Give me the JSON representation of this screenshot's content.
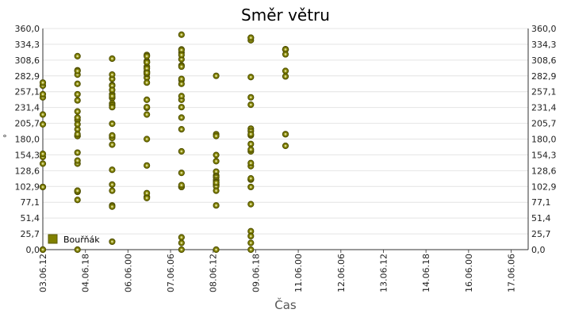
{
  "chart_data": {
    "type": "scatter",
    "title": "Směr větru",
    "xlabel": "Čas",
    "ylabel": "°",
    "ylim": [
      0,
      360
    ],
    "yticks": [
      "0,0",
      "25,7",
      "51,4",
      "77,1",
      "102,9",
      "128,6",
      "154,3",
      "180,0",
      "205,7",
      "231,4",
      "257,1",
      "282,9",
      "308,6",
      "334,3",
      "360,0"
    ],
    "xlim": [
      "03.06.12 00:00",
      "17.06.18 00:00"
    ],
    "xticks": [
      "03.06.12",
      "04.06.18",
      "06.06.00",
      "07.06.06",
      "08.06.12",
      "09.06.18",
      "11.06.00",
      "12.06.06",
      "13.06.12",
      "14.06.18",
      "16.06.00",
      "17.06.06"
    ],
    "grid": true,
    "legend": "bottom-left",
    "marker_color": "#808000",
    "series": [
      {
        "name": "Bouřňák",
        "points": [
          [
            "03.06.12 00:00",
            267
          ],
          [
            "03.06.12 00:00",
            102
          ],
          [
            "03.06.13 00:00",
            248
          ],
          [
            "03.06.14 00:00",
            151
          ],
          [
            "03.06.15 00:00",
            220
          ],
          [
            "03.06.16 00:00",
            156
          ],
          [
            "03.06.17 00:00",
            272
          ],
          [
            "03.06.18 00:00",
            102
          ],
          [
            "03.06.19 00:00",
            0
          ],
          [
            "03.06.20 00:00",
            140
          ],
          [
            "03.06.21 00:00",
            0
          ],
          [
            "03.06.22 00:00",
            253
          ],
          [
            "03.06.23 00:00",
            204
          ],
          [
            "04.06.00 00:00",
            81
          ],
          [
            "04.06.01 00:00",
            95
          ],
          [
            "04.06.02 00:00",
            225
          ],
          [
            "04.06.03 00:00",
            292
          ],
          [
            "04.06.04 00:00",
            315
          ],
          [
            "04.06.05 00:00",
            285
          ],
          [
            "04.06.06 00:00",
            270
          ],
          [
            "04.06.07 00:00",
            291
          ],
          [
            "04.06.08 00:00",
            243
          ],
          [
            "04.06.09 00:00",
            140
          ],
          [
            "04.06.10 00:00",
            196
          ],
          [
            "04.06.11 00:00",
            211
          ],
          [
            "04.06.12 00:00",
            185
          ],
          [
            "04.06.13 00:00",
            94
          ],
          [
            "04.06.14 00:00",
            96
          ],
          [
            "04.06.15 00:00",
            145
          ],
          [
            "04.06.16 00:00",
            215
          ],
          [
            "04.06.17 00:00",
            204
          ],
          [
            "04.06.18 00:00",
            185
          ],
          [
            "04.06.19 00:00",
            0
          ],
          [
            "04.06.20 00:00",
            96
          ],
          [
            "04.06.21 00:00",
            253
          ],
          [
            "04.06.22 00:00",
            188
          ],
          [
            "04.06.23 00:00",
            158
          ],
          [
            "05.06.00 00:00",
            278
          ],
          [
            "05.06.01 00:00",
            311
          ],
          [
            "05.06.02 00:00",
            268
          ],
          [
            "05.06.03 00:00",
            267
          ],
          [
            "05.06.04 00:00",
            205
          ],
          [
            "05.06.05 00:00",
            253
          ],
          [
            "05.06.06 00:00",
            13
          ],
          [
            "05.06.07 00:00",
            171
          ],
          [
            "05.06.08 00:00",
            130
          ],
          [
            "05.06.09 00:00",
            185
          ],
          [
            "05.06.10 00:00",
            247
          ],
          [
            "05.06.11 00:00",
            96
          ],
          [
            "05.06.12 00:00",
            106
          ],
          [
            "05.06.13 00:00",
            182
          ],
          [
            "05.06.14 00:00",
            186
          ],
          [
            "05.06.15 00:00",
            285
          ],
          [
            "05.06.16 00:00",
            247
          ],
          [
            "05.06.17 00:00",
            238
          ],
          [
            "05.06.18 00:00",
            235
          ],
          [
            "05.06.19 00:00",
            72
          ],
          [
            "05.06.20 00:00",
            70
          ],
          [
            "05.06.21 00:00",
            232
          ],
          [
            "05.06.22 00:00",
            250
          ],
          [
            "05.06.23 00:00",
            260
          ],
          [
            "06.06.00 00:00",
            290
          ],
          [
            "06.06.01 00:00",
            231
          ],
          [
            "06.06.02 00:00",
            288
          ],
          [
            "06.06.03 00:00",
            317
          ],
          [
            "06.06.04 00:00",
            307
          ],
          [
            "06.06.05 00:00",
            298
          ],
          [
            "06.06.06 00:00",
            315
          ],
          [
            "06.06.07 00:00",
            305
          ],
          [
            "06.06.08 00:00",
            305
          ],
          [
            "06.06.09 00:00",
            280
          ],
          [
            "06.06.10 00:00",
            290
          ],
          [
            "06.06.11 00:00",
            295
          ],
          [
            "06.06.12 00:00",
            286
          ],
          [
            "06.06.13 00:00",
            272
          ],
          [
            "06.06.14 00:00",
            305
          ],
          [
            "06.06.15 00:00",
            288
          ],
          [
            "06.06.16 00:00",
            232
          ],
          [
            "06.06.17 00:00",
            220
          ],
          [
            "06.06.18 00:00",
            137
          ],
          [
            "06.06.19 00:00",
            244
          ],
          [
            "06.06.20 00:00",
            180
          ],
          [
            "06.06.21 00:00",
            86
          ],
          [
            "06.06.22 00:00",
            92
          ],
          [
            "06.06.23 00:00",
            84
          ],
          [
            "07.06.00 00:00",
            232
          ],
          [
            "07.06.01 00:00",
            244
          ],
          [
            "07.06.02 00:00",
            250
          ],
          [
            "07.06.03 00:00",
            300
          ],
          [
            "07.06.04 00:00",
            326
          ],
          [
            "07.06.05 00:00",
            310
          ],
          [
            "07.06.06 00:00",
            276
          ],
          [
            "07.06.07 00:00",
            298
          ],
          [
            "07.06.08 00:00",
            321
          ],
          [
            "07.06.09 00:00",
            325
          ],
          [
            "07.06.10 00:00",
            160
          ],
          [
            "07.06.11 00:00",
            317
          ],
          [
            "07.06.12 00:00",
            270
          ],
          [
            "07.06.13 00:00",
            196
          ],
          [
            "07.06.14 00:00",
            215
          ],
          [
            "07.06.15 00:00",
            20
          ],
          [
            "07.06.16 00:00",
            11
          ],
          [
            "07.06.17 00:00",
            350
          ],
          [
            "07.06.18 00:00",
            278
          ],
          [
            "07.06.19 00:00",
            0
          ],
          [
            "07.06.20 00:00",
            125
          ],
          [
            "07.06.21 00:00",
            102
          ],
          [
            "07.06.22 00:00",
            102
          ],
          [
            "07.06.23 00:00",
            105
          ],
          [
            "08.06.00 00:00",
            188
          ],
          [
            "08.06.01 00:00",
            185
          ],
          [
            "08.06.02 00:00",
            105
          ],
          [
            "08.06.03 00:00",
            110
          ],
          [
            "08.06.04 00:00",
            0
          ],
          [
            "08.06.05 00:00",
            113
          ],
          [
            "08.06.06 00:00",
            118
          ],
          [
            "08.06.07 00:00",
            121
          ],
          [
            "08.06.08 00:00",
            127
          ],
          [
            "08.06.09 00:00",
            108
          ],
          [
            "08.06.10 00:00",
            105
          ],
          [
            "08.06.11 00:00",
            154
          ],
          [
            "08.06.12 00:00",
            283
          ],
          [
            "08.06.13 00:00",
            72
          ],
          [
            "08.06.14 00:00",
            120
          ],
          [
            "08.06.15 00:00",
            118
          ],
          [
            "08.06.16 00:00",
            106
          ],
          [
            "08.06.17 00:00",
            105
          ],
          [
            "08.06.18 00:00",
            103
          ],
          [
            "08.06.19 00:00",
            113
          ],
          [
            "08.06.20 00:00",
            110
          ],
          [
            "08.06.21 00:00",
            144
          ],
          [
            "08.06.22 00:00",
            109
          ],
          [
            "08.06.23 00:00",
            96
          ],
          [
            "09.06.00 00:00",
            114
          ],
          [
            "09.06.01 00:00",
            136
          ],
          [
            "09.06.02 00:00",
            114
          ],
          [
            "09.06.03 00:00",
            116
          ],
          [
            "09.06.04 00:00",
            160
          ],
          [
            "09.06.05 00:00",
            172
          ],
          [
            "09.06.06 00:00",
            197
          ],
          [
            "09.06.07 00:00",
            193
          ],
          [
            "09.06.08 00:00",
            186
          ],
          [
            "09.06.09 00:00",
            345
          ],
          [
            "09.06.10 00:00",
            188
          ],
          [
            "09.06.11 00:00",
            74
          ],
          [
            "09.06.12 00:00",
            102
          ],
          [
            "09.06.13 00:00",
            141
          ],
          [
            "09.06.14 00:00",
            163
          ],
          [
            "09.06.15 00:00",
            0
          ],
          [
            "09.06.16 00:00",
            281
          ],
          [
            "09.06.17 00:00",
            236
          ],
          [
            "09.06.18 00:00",
            30
          ],
          [
            "09.06.19 00:00",
            341
          ],
          [
            "09.06.20 00:00",
            345
          ],
          [
            "09.06.21 00:00",
            248
          ],
          [
            "09.06.22 00:00",
            11
          ],
          [
            "09.06.23 00:00",
            22
          ],
          [
            "10.06.00 00:00",
            169
          ],
          [
            "10.06.01 00:00",
            282
          ],
          [
            "10.06.02 00:00",
            291
          ],
          [
            "10.06.03 00:00",
            326
          ],
          [
            "10.06.04 00:00",
            326
          ],
          [
            "10.06.05 00:00",
            326
          ],
          [
            "10.06.06 00:00",
            326
          ],
          [
            "10.06.07 00:00",
            326
          ],
          [
            "10.06.08 00:00",
            326
          ],
          [
            "10.06.09 00:00",
            326
          ],
          [
            "10.06.10 00:00",
            326
          ],
          [
            "10.06.11 00:00",
            326
          ],
          [
            "10.06.12 00:00",
            326
          ],
          [
            "10.06.13 00:00",
            326
          ],
          [
            "10.06.14 00:00",
            318
          ],
          [
            "10.06.15 00:00",
            188
          ],
          [
            "10.06.16 00:00",
            188
          ]
        ]
      }
    ]
  }
}
